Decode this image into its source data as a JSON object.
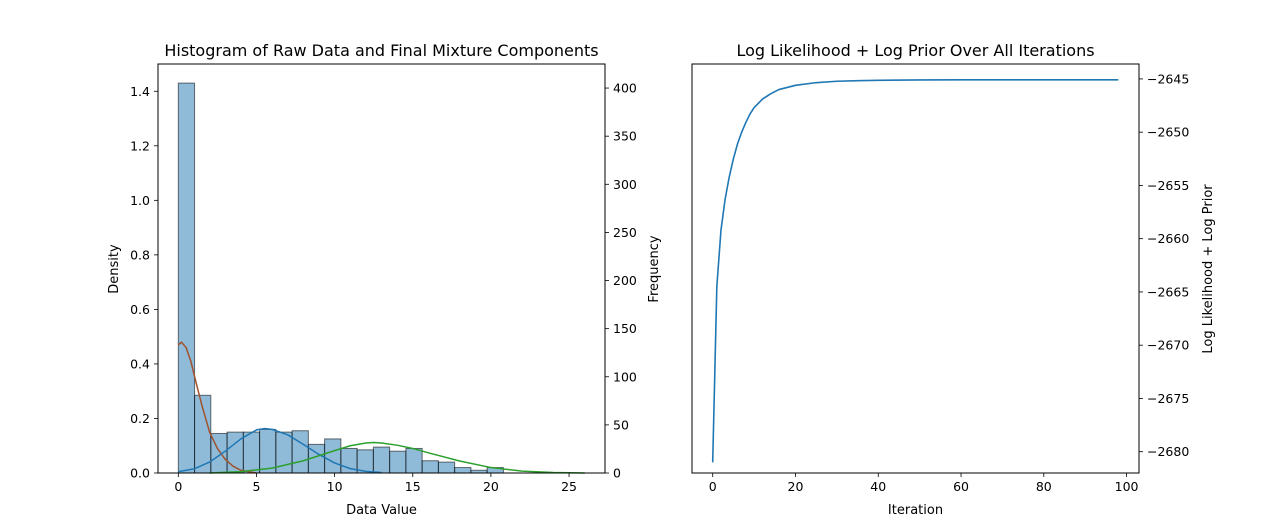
{
  "chart_data": [
    {
      "type": "bar",
      "title": "Histogram of Raw Data and Final Mixture Components",
      "xlabel": "Data Value",
      "ylabel": "Density",
      "y2label": "Frequency",
      "xlim": [
        -1.3,
        27.3
      ],
      "ylim": [
        0,
        1.5
      ],
      "y2lim": [
        0,
        425
      ],
      "xticks": [
        0,
        5,
        10,
        15,
        20,
        25
      ],
      "yticks": [
        0.0,
        0.2,
        0.4,
        0.6,
        0.8,
        1.0,
        1.2,
        1.4
      ],
      "y2ticks": [
        0,
        50,
        100,
        150,
        200,
        250,
        300,
        350,
        400
      ],
      "bin_width": 1.04,
      "bin_start": 0,
      "bins_density": [
        1.43,
        0.285,
        0.145,
        0.15,
        0.15,
        0.16,
        0.15,
        0.155,
        0.105,
        0.125,
        0.09,
        0.085,
        0.095,
        0.08,
        0.09,
        0.045,
        0.04,
        0.02,
        0.01,
        0.02
      ],
      "bar_color": "#1f77b4",
      "bar_alpha": 0.5,
      "grid": false,
      "series": [
        {
          "color": "#a0522d",
          "x": [
            0,
            0.2,
            0.5,
            0.8,
            1.1,
            1.5,
            2.0,
            2.5,
            3.0,
            3.5,
            4.0,
            4.5,
            5.0
          ],
          "values": [
            0.47,
            0.48,
            0.46,
            0.41,
            0.34,
            0.25,
            0.15,
            0.09,
            0.05,
            0.025,
            0.01,
            0.005,
            0.0
          ]
        },
        {
          "color": "#1f77b4",
          "x": [
            0,
            1,
            2,
            3,
            4,
            5,
            5.5,
            6,
            7,
            8,
            9,
            10,
            11,
            12,
            13
          ],
          "values": [
            0.005,
            0.015,
            0.04,
            0.08,
            0.125,
            0.158,
            0.163,
            0.16,
            0.14,
            0.105,
            0.068,
            0.037,
            0.016,
            0.006,
            0.002
          ]
        },
        {
          "color": "#2ca02c",
          "x": [
            2,
            4,
            6,
            8,
            10,
            11,
            12,
            12.5,
            13,
            14,
            15,
            16,
            18,
            20,
            22,
            24,
            26
          ],
          "values": [
            0.0,
            0.005,
            0.018,
            0.045,
            0.082,
            0.1,
            0.11,
            0.112,
            0.11,
            0.102,
            0.09,
            0.074,
            0.044,
            0.02,
            0.007,
            0.002,
            0.0
          ]
        }
      ]
    },
    {
      "type": "line",
      "title": "Log Likelihood + Log Prior Over All Iterations",
      "xlabel": "Iteration",
      "ylabel": "Log Likelihood + Log Prior",
      "xlim": [
        -5,
        103
      ],
      "ylim": [
        -2682,
        -2643.6
      ],
      "xticks": [
        0,
        20,
        40,
        60,
        80,
        100
      ],
      "yticks": [
        -2680,
        -2675,
        -2670,
        -2665,
        -2660,
        -2655,
        -2650,
        -2645
      ],
      "grid": false,
      "series": [
        {
          "color": "#1f77b4",
          "x": [
            0,
            1,
            2,
            3,
            4,
            5,
            6,
            7,
            8,
            9,
            10,
            12,
            14,
            16,
            18,
            20,
            25,
            30,
            35,
            40,
            50,
            60,
            70,
            80,
            90,
            98
          ],
          "values": [
            -2681,
            -2664.5,
            -2659.2,
            -2656.3,
            -2654.2,
            -2652.5,
            -2651.1,
            -2650,
            -2649.1,
            -2648.3,
            -2647.7,
            -2646.9,
            -2646.4,
            -2646,
            -2645.8,
            -2645.6,
            -2645.35,
            -2645.22,
            -2645.17,
            -2645.13,
            -2645.1,
            -2645.08,
            -2645.08,
            -2645.08,
            -2645.08,
            -2645.08
          ]
        }
      ]
    }
  ]
}
